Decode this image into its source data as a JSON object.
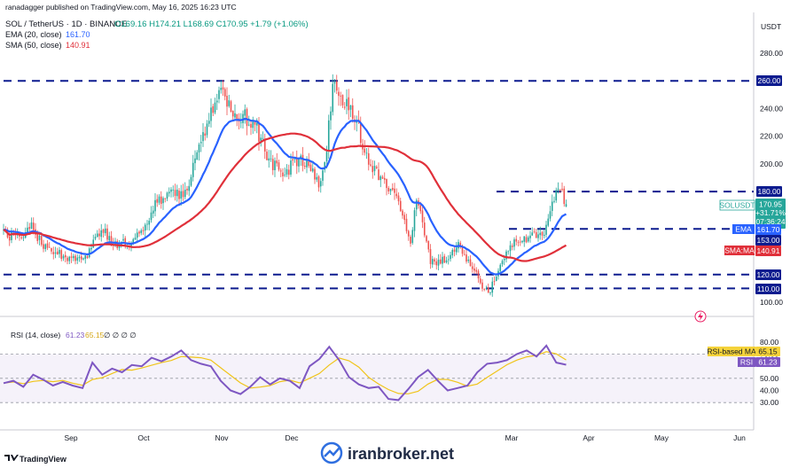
{
  "header": {
    "published": "ranadagger published on TradingView.com, May 16, 2025 16:23 UTC",
    "symbol_line": "SOL / TetherUS · 1D · BINANCE",
    "ohlc": "O169.16 H174.21 L168.69 C170.95 +1.79 (+1.06%)",
    "ema_label": "EMA (20, close)",
    "ema_value": "161.70",
    "sma_label": "SMA (50, close)",
    "sma_value": "140.91",
    "rsi_label": "RSI (14, close)",
    "rsi_values": "61.23",
    "rsi_ma_values": "65.15",
    "rsi_extra": "∅ ∅ ∅ ∅"
  },
  "price_axis": {
    "currency": "USDT",
    "ticks": [
      "280.00",
      "240.00",
      "220.00",
      "200.00",
      "100.00"
    ]
  },
  "rsi_axis": {
    "ticks": [
      "80.00",
      "70.00",
      "50.00",
      "40.00",
      "30.00"
    ]
  },
  "time_axis": {
    "labels": [
      "Sep",
      "Oct",
      "Nov",
      "Dec",
      "Mar",
      "Apr",
      "May",
      "Jun"
    ]
  },
  "badges": {
    "level_260": "260.00",
    "level_180": "180.00",
    "sol_symbol": "SOLUSDT",
    "sol_price": "170.95",
    "sol_change": "+31.71%",
    "sol_timer": "07:36:24",
    "ema_tag": "EMA",
    "ema_value": "161.70",
    "level_153": "153.00",
    "sma_tag": "SMA:MA",
    "sma_value": "140.91",
    "level_120": "120.00",
    "level_110": "110.00",
    "rsi_ma_tag": "RSI-based MA",
    "rsi_ma_value": "65.15",
    "rsi_tag": "RSI",
    "rsi_value": "61.23"
  },
  "footer": {
    "brand": "TradingView",
    "watermark": "iranbroker.net"
  },
  "colors": {
    "up": "#26a69a",
    "down": "#ef5350",
    "ema": "#2962ff",
    "sma": "#e0303a",
    "level": "#0d1c8f",
    "rsi": "#7e57c2",
    "rsi_ma": "#f0c419"
  },
  "chart_data": [
    {
      "type": "candlestick",
      "symbol": "SOL / TetherUS",
      "interval": "1D",
      "exchange": "BINANCE",
      "ylim": [
        88,
        300
      ],
      "horizontal_levels": [
        260,
        180,
        153,
        120,
        110
      ],
      "close_path": [
        [
          "2024-08-07",
          150
        ],
        [
          "2024-08-14",
          146
        ],
        [
          "2024-08-21",
          154
        ],
        [
          "2024-08-28",
          139
        ],
        [
          "2024-09-04",
          135
        ],
        [
          "2024-09-11",
          131
        ],
        [
          "2024-09-18",
          135
        ],
        [
          "2024-09-25",
          154
        ],
        [
          "2024-10-02",
          141
        ],
        [
          "2024-10-09",
          143
        ],
        [
          "2024-10-16",
          154
        ],
        [
          "2024-10-23",
          173
        ],
        [
          "2024-10-30",
          178
        ],
        [
          "2024-11-06",
          178
        ],
        [
          "2024-11-13",
          210
        ],
        [
          "2024-11-20",
          240
        ],
        [
          "2024-11-23",
          255
        ],
        [
          "2024-11-28",
          240
        ],
        [
          "2024-12-05",
          235
        ],
        [
          "2024-12-12",
          225
        ],
        [
          "2024-12-19",
          200
        ],
        [
          "2024-12-26",
          192
        ],
        [
          "2025-01-02",
          205
        ],
        [
          "2025-01-09",
          195
        ],
        [
          "2025-01-13",
          185
        ],
        [
          "2025-01-16",
          210
        ],
        [
          "2025-01-19",
          260
        ],
        [
          "2025-01-23",
          250
        ],
        [
          "2025-01-30",
          235
        ],
        [
          "2025-02-06",
          200
        ],
        [
          "2025-02-13",
          190
        ],
        [
          "2025-02-20",
          175
        ],
        [
          "2025-02-27",
          142
        ],
        [
          "2025-03-02",
          175
        ],
        [
          "2025-03-09",
          130
        ],
        [
          "2025-03-16",
          130
        ],
        [
          "2025-03-23",
          140
        ],
        [
          "2025-03-30",
          125
        ],
        [
          "2025-04-07",
          105
        ],
        [
          "2025-04-14",
          130
        ],
        [
          "2025-04-21",
          145
        ],
        [
          "2025-04-28",
          147
        ],
        [
          "2025-05-05",
          150
        ],
        [
          "2025-05-10",
          175
        ],
        [
          "2025-05-13",
          180
        ],
        [
          "2025-05-16",
          170.95
        ]
      ],
      "series": [
        {
          "name": "EMA (20, close)",
          "last": 161.7
        },
        {
          "name": "SMA (50, close)",
          "last": 140.91
        }
      ],
      "last": {
        "open": 169.16,
        "high": 174.21,
        "low": 168.69,
        "close": 170.95,
        "change": 1.79,
        "change_pct": 1.06
      }
    },
    {
      "type": "line",
      "name": "RSI (14, close)",
      "ylim": [
        25,
        85
      ],
      "levels": [
        70,
        50,
        30
      ],
      "values": [
        46,
        48,
        43,
        53,
        49,
        44,
        47,
        44,
        42,
        63,
        53,
        58,
        55,
        61,
        60,
        67,
        64,
        68,
        73,
        65,
        62,
        60,
        48,
        40,
        37,
        43,
        51,
        45,
        50,
        48,
        42,
        60,
        66,
        76,
        65,
        51,
        45,
        42,
        43,
        33,
        32,
        41,
        51,
        57,
        48,
        40,
        42,
        44,
        55,
        62,
        63,
        65,
        70,
        73,
        68,
        77,
        63,
        61.23
      ],
      "series": [
        {
          "name": "RSI",
          "last": 61.23
        },
        {
          "name": "RSI-based MA",
          "last": 65.15
        }
      ]
    }
  ]
}
